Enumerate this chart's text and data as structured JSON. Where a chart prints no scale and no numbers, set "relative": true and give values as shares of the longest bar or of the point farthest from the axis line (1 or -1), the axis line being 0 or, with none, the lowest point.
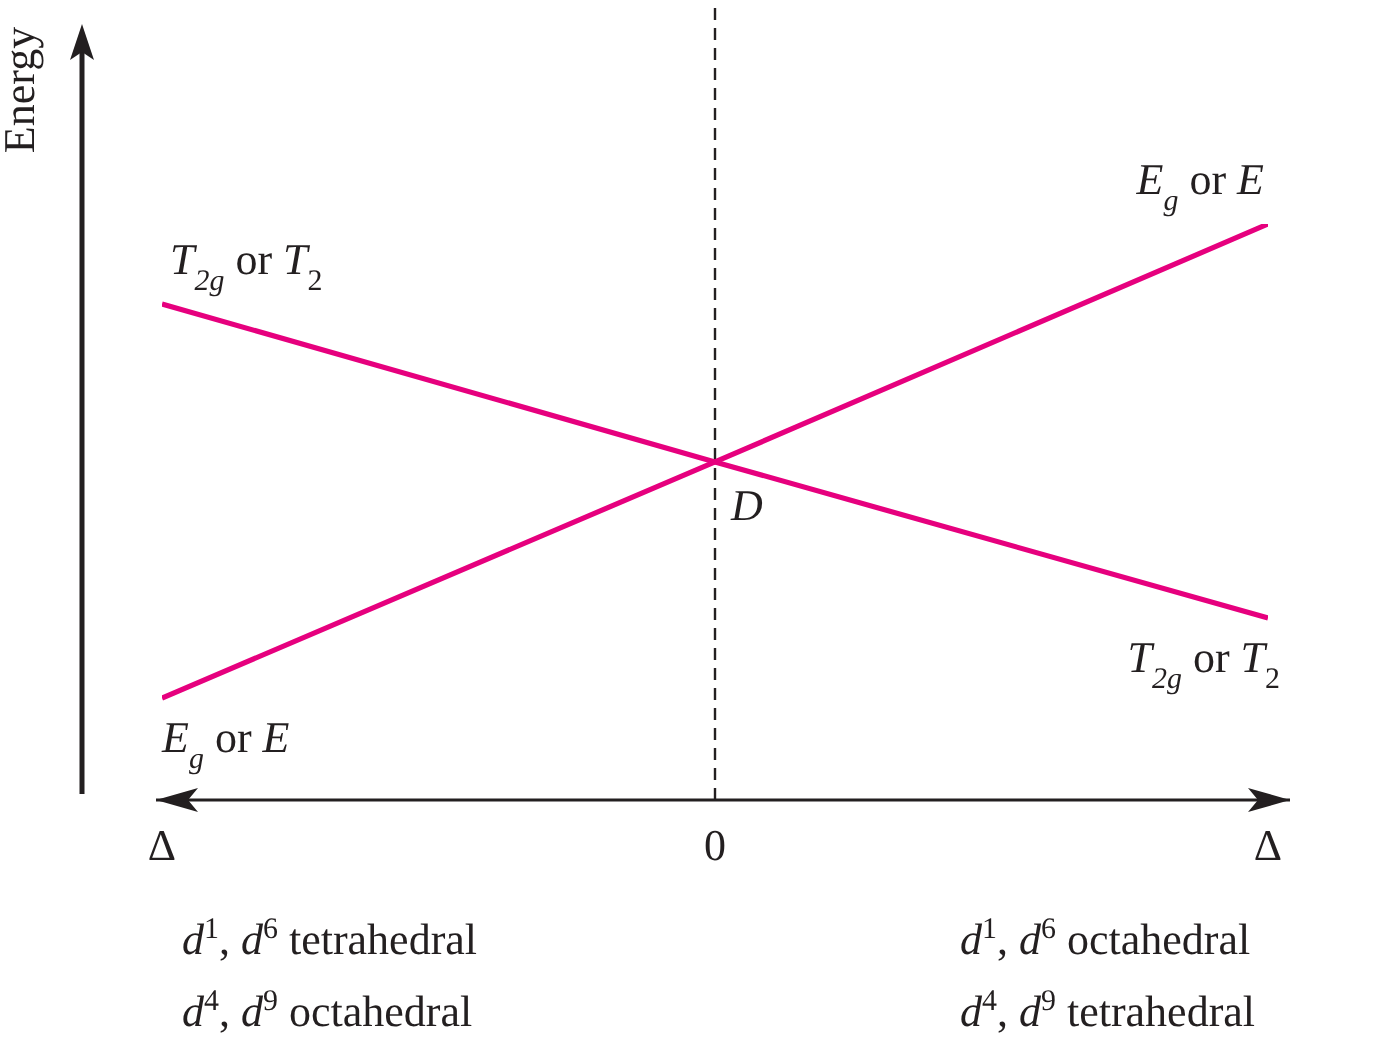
{
  "chart_data": {
    "type": "line",
    "ylabel": "Energy",
    "relative": true,
    "categories": [
      "Δ",
      "0",
      "Δ"
    ],
    "series": [
      {
        "name": "T$_{2g}$ or T$_{2}$",
        "color": "#e6007e",
        "values": [
          0.861,
          0.587,
          0.316
        ]
      },
      {
        "name": "E$_{g}$ or E",
        "color": "#e6007e",
        "values": [
          0.177,
          0.587,
          1
        ]
      }
    ],
    "ref_lines": [
      {
        "axis": "x",
        "value": "0",
        "line_style": "dashed",
        "color": "#231f20"
      }
    ],
    "annotations": [
      {
        "text": "D",
        "x": "0",
        "y": 0.587
      },
      "T$_{2g}$ or T$_{2}$",
      "E$_{g}$ or E",
      "d$^{1}$, d$^{6}$ tetrahedral",
      "d$^{1}$, d$^{6}$ octahedral",
      "d$^{4}$, d$^{9}$ octahedral",
      "d$^{4}$, d$^{9}$ tetrahedral"
    ]
  }
}
